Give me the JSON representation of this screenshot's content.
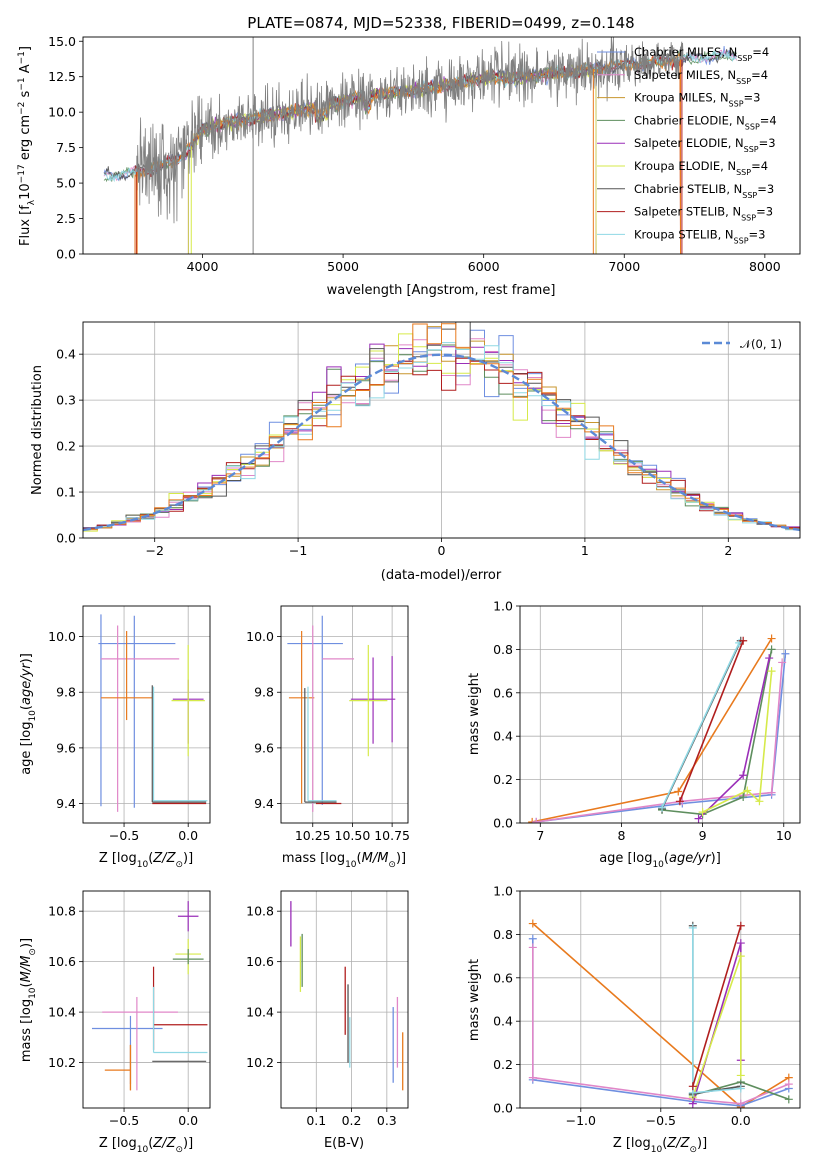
{
  "figure": {
    "title": "PLATE=0874, MJD=52338, FIBERID=0499, z=0.148",
    "models": [
      {
        "name": "Chabrier MILES, N$_{SSP}$=4",
        "label": "Chabrier MILES, N",
        "sub": "SSP",
        "suffix": "=4",
        "color": "#6f8fe0"
      },
      {
        "name": "Salpeter MILES, N$_{SSP}$=4",
        "label": "Salpeter MILES, N",
        "sub": "SSP",
        "suffix": "=4",
        "color": "#e087c8"
      },
      {
        "name": "Kroupa MILES, N$_{SSP}$=3",
        "label": "Kroupa MILES, N",
        "sub": "SSP",
        "suffix": "=3",
        "color": "#c8962e"
      },
      {
        "name": "Chabrier ELODIE, N$_{SSP}$=4",
        "label": "Chabrier ELODIE, N",
        "sub": "SSP",
        "suffix": "=4",
        "color": "#5e8e5e"
      },
      {
        "name": "Salpeter ELODIE, N$_{SSP}$=3",
        "label": "Salpeter ELODIE, N",
        "sub": "SSP",
        "suffix": "=3",
        "color": "#9a2fb8"
      },
      {
        "name": "Kroupa ELODIE, N$_{SSP}$=4",
        "label": "Kroupa ELODIE, N",
        "sub": "SSP",
        "suffix": "=4",
        "color": "#d6ea4a"
      },
      {
        "name": "Chabrier STELIB, N$_{SSP}$=3",
        "label": "Chabrier STELIB, N",
        "sub": "SSP",
        "suffix": "=3",
        "color": "#555555"
      },
      {
        "name": "Salpeter STELIB, N$_{SSP}$=3",
        "label": "Salpeter STELIB, N",
        "sub": "SSP",
        "suffix": "=3",
        "color": "#b01e1e"
      },
      {
        "name": "Kroupa STELIB, N$_{SSP}$=3",
        "label": "Kroupa STELIB, N",
        "sub": "SSP",
        "suffix": "=3",
        "color": "#8fd8e4"
      }
    ],
    "extra_colors": {
      "orange": "#e87a1e",
      "data": "#808080",
      "gauss": "#5b8ad6"
    }
  },
  "chart_data": [
    {
      "id": "spectrum",
      "type": "line",
      "xlabel": "wavelength [Angstrom, rest frame]",
      "ylabel_prefix": "Flux [f",
      "ylabel_sub": "λ",
      "ylabel_mid": "10",
      "ylabel_sup1": "−17",
      "ylabel_mid2": " erg cm",
      "ylabel_sup2": "−2",
      "ylabel_mid3": " s",
      "ylabel_sup3": "−1",
      "ylabel_mid4": " A",
      "ylabel_sup4": "−1",
      "ylabel_end": "]",
      "xlim": [
        3150,
        8250
      ],
      "ylim": [
        0,
        15.3
      ],
      "xticks": [
        4000,
        5000,
        6000,
        7000,
        8000
      ],
      "xtick_labels": [
        "4000",
        "5000",
        "6000",
        "7000",
        "8000"
      ],
      "yticks": [
        0,
        2.5,
        5,
        7.5,
        10,
        12.5,
        15
      ],
      "ytick_labels": [
        "0.0",
        "2.5",
        "5.0",
        "7.5",
        "10.0",
        "12.5",
        "15.0"
      ],
      "continuum": {
        "x": [
          3300,
          3500,
          3700,
          3800,
          3900,
          4000,
          4200,
          4500,
          4800,
          5000,
          5200,
          5500,
          5800,
          6000,
          6300,
          6600,
          7000,
          7200,
          7400,
          7600,
          7800
        ],
        "y": [
          5.5,
          5.7,
          6.2,
          6.6,
          7.3,
          8.8,
          9.3,
          9.8,
          10.3,
          10.8,
          11.2,
          11.5,
          12.0,
          12.4,
          12.5,
          12.8,
          13.3,
          13.5,
          13.7,
          13.9,
          14.0
        ]
      },
      "data_range": [
        3530,
        7420
      ],
      "model_ranges": [
        [
          3300,
          7800
        ],
        [
          3520,
          7400
        ],
        [
          3900,
          6800
        ]
      ],
      "gaps": [
        3530,
        3920,
        6780,
        7400
      ]
    },
    {
      "id": "residual_hist",
      "type": "bar",
      "xlabel": "(data-model)/error",
      "ylabel": "Normed distribution",
      "xlim": [
        -2.5,
        2.5
      ],
      "ylim": [
        0,
        0.47
      ],
      "xticks": [
        -2,
        -1,
        0,
        1,
        2
      ],
      "xtick_labels": [
        "−2",
        "−1",
        "0",
        "1",
        "2"
      ],
      "yticks": [
        0,
        0.1,
        0.2,
        0.3,
        0.4
      ],
      "ytick_labels": [
        "0.0",
        "0.1",
        "0.2",
        "0.3",
        "0.4"
      ],
      "gauss_label": "𝒩(0, 1)",
      "bin_width": 0.1
    },
    {
      "id": "age_vs_Z",
      "type": "scatter",
      "xlabel_pre": "Z [log",
      "xlabel_sub": "10",
      "xlabel_post": "(Z/Z",
      "xlabel_sub2": "⊙",
      "xlabel_end": ")]",
      "ylabel": "age  [log₁₀(age/yr)]",
      "xlim": [
        -0.82,
        0.17
      ],
      "ylim": [
        9.33,
        10.11
      ],
      "xticks": [
        -0.5,
        0.0
      ],
      "xtick_labels": [
        "−0.5",
        "0.0"
      ],
      "yticks": [
        9.4,
        9.6,
        9.8,
        10.0
      ],
      "ytick_labels": [
        "9.4",
        "9.6",
        "9.8",
        "10.0"
      ],
      "points": [
        {
          "x": -0.45,
          "y": 9.975,
          "xerr": 0.28,
          "yerr": 0.1,
          "c": "#6f8fe0",
          "xv": -0.68
        },
        {
          "x": -0.4,
          "y": 9.92,
          "xerr": 0.21,
          "c": "#e087c8"
        },
        {
          "x": -0.45,
          "y": 9.78,
          "xerr": 0.21,
          "c": "#e87a1e"
        },
        {
          "x": 0.0,
          "y": 9.775,
          "xerr": 0.11,
          "c": "#9a2fb8"
        },
        {
          "x": 0.0,
          "y": 9.77,
          "xerr": 0.13,
          "c": "#d6ea4a"
        },
        {
          "x": -0.05,
          "y": 9.41,
          "xerr": 0.22,
          "c": "#8fd8e4"
        },
        {
          "x": -0.05,
          "y": 9.405,
          "xerr": 0.22,
          "c": "#555555"
        },
        {
          "x": -0.05,
          "y": 9.4,
          "xerr": 0.22,
          "c": "#b01e1e"
        }
      ]
    },
    {
      "id": "age_vs_mass",
      "type": "scatter",
      "xlabel": "mass [log₁₀(M/M⊙)]",
      "xlim": [
        10.05,
        10.85
      ],
      "ylim": [
        9.33,
        10.11
      ],
      "xticks": [
        10.25,
        10.5,
        10.75
      ],
      "xtick_labels": [
        "10.25",
        "10.50",
        "10.75"
      ],
      "yticks": [
        9.4,
        9.6,
        9.8,
        10.0
      ],
      "ytick_labels": [
        "9.4",
        "9.6",
        "9.8",
        "10.0"
      ]
    },
    {
      "id": "weight_vs_age",
      "type": "line",
      "xlabel": "age  [log₁₀(age/yr)]",
      "ylabel": "mass weight",
      "xlim": [
        6.75,
        10.2
      ],
      "ylim": [
        0,
        1.0
      ],
      "xticks": [
        7,
        8,
        9,
        10
      ],
      "xtick_labels": [
        "7",
        "8",
        "9",
        "10"
      ],
      "yticks": [
        0,
        0.2,
        0.4,
        0.6,
        0.8,
        1.0
      ],
      "ytick_labels": [
        "0.0",
        "0.2",
        "0.4",
        "0.6",
        "0.8",
        "1.0"
      ],
      "series": [
        {
          "c": "#e87a1e",
          "x": [
            6.9,
            8.7,
            9.85
          ],
          "y": [
            0.005,
            0.145,
            0.85
          ]
        },
        {
          "c": "#6f8fe0",
          "x": [
            6.95,
            8.75,
            9.85,
            10.02
          ],
          "y": [
            0.005,
            0.09,
            0.13,
            0.78
          ]
        },
        {
          "c": "#e087c8",
          "x": [
            6.95,
            8.75,
            9.85,
            9.98
          ],
          "y": [
            0.005,
            0.1,
            0.14,
            0.74
          ]
        },
        {
          "c": "#5e8e5e",
          "x": [
            8.5,
            9.0,
            9.5,
            9.85
          ],
          "y": [
            0.06,
            0.04,
            0.12,
            0.8
          ]
        },
        {
          "c": "#9a2fb8",
          "x": [
            8.95,
            9.5,
            9.82
          ],
          "y": [
            0.02,
            0.22,
            0.76
          ]
        },
        {
          "c": "#d6ea4a",
          "x": [
            9.0,
            9.55,
            9.7,
            9.85
          ],
          "y": [
            0.05,
            0.15,
            0.1,
            0.7
          ]
        },
        {
          "c": "#555555",
          "x": [
            8.5,
            9.47
          ],
          "y": [
            0.065,
            0.84
          ]
        },
        {
          "c": "#8fd8e4",
          "x": [
            8.5,
            9.45
          ],
          "y": [
            0.07,
            0.83
          ]
        },
        {
          "c": "#b01e1e",
          "x": [
            8.72,
            9.5
          ],
          "y": [
            0.1,
            0.84
          ]
        }
      ]
    },
    {
      "id": "mass_vs_Z",
      "type": "scatter",
      "xlabel": "Z [log₁₀(Z/Z⊙)]",
      "ylabel": "mass [log₁₀(M/M⊙)]",
      "xlim": [
        -0.82,
        0.17
      ],
      "ylim": [
        10.02,
        10.88
      ],
      "xticks": [
        -0.5,
        0.0
      ],
      "xtick_labels": [
        "−0.5",
        "0.0"
      ],
      "yticks": [
        10.2,
        10.4,
        10.6,
        10.8
      ],
      "ytick_labels": [
        "10.2",
        "10.4",
        "10.6",
        "10.8"
      ]
    },
    {
      "id": "mass_vs_ebv",
      "type": "scatter",
      "xlabel": "E(B-V)",
      "xlim": [
        0.0,
        0.36
      ],
      "ylim": [
        10.02,
        10.88
      ],
      "xticks": [
        0.1,
        0.2,
        0.3
      ],
      "xtick_labels": [
        "0.1",
        "0.2",
        "0.3"
      ],
      "yticks": [
        10.2,
        10.4,
        10.6,
        10.8
      ],
      "ytick_labels": [
        "10.2",
        "10.4",
        "10.6",
        "10.8"
      ]
    },
    {
      "id": "weight_vs_Z",
      "type": "line",
      "xlabel": "Z [log₁₀(Z/Z⊙)]",
      "ylabel": "mass weight",
      "xlim": [
        -1.38,
        0.37
      ],
      "ylim": [
        0,
        1.0
      ],
      "xticks": [
        -1.0,
        -0.5,
        0.0
      ],
      "xtick_labels": [
        "−1.0",
        "−0.5",
        "0.0"
      ],
      "yticks": [
        0,
        0.2,
        0.4,
        0.6,
        0.8,
        1.0
      ],
      "ytick_labels": [
        "0.0",
        "0.2",
        "0.4",
        "0.6",
        "0.8",
        "1.0"
      ],
      "series": [
        {
          "c": "#e87a1e",
          "x": [
            -1.3,
            0.0,
            0.3
          ],
          "y": [
            0.85,
            0.005,
            0.14
          ]
        },
        {
          "c": "#6f8fe0",
          "x": [
            -1.3,
            -1.3,
            -0.3,
            0.0,
            0.3
          ],
          "y": [
            0.78,
            0.13,
            0.03,
            0.01,
            0.09
          ]
        },
        {
          "c": "#e087c8",
          "x": [
            -1.3,
            -1.3,
            -0.3,
            0.0,
            0.3
          ],
          "y": [
            0.74,
            0.14,
            0.04,
            0.02,
            0.11
          ]
        },
        {
          "c": "#5e8e5e",
          "x": [
            -0.3,
            0.0,
            0.3
          ],
          "y": [
            0.06,
            0.12,
            0.04
          ]
        },
        {
          "c": "#9a2fb8",
          "x": [
            -0.3,
            0.0,
            0.0
          ],
          "y": [
            0.02,
            0.76,
            0.22
          ]
        },
        {
          "c": "#d6ea4a",
          "x": [
            -0.3,
            0.0,
            0.0
          ],
          "y": [
            0.05,
            0.7,
            0.15
          ]
        },
        {
          "c": "#555555",
          "x": [
            -0.3,
            -0.3,
            0.0
          ],
          "y": [
            0.84,
            0.065,
            0.1
          ]
        },
        {
          "c": "#8fd8e4",
          "x": [
            -0.3,
            -0.3,
            0.0
          ],
          "y": [
            0.83,
            0.07,
            0.09
          ]
        },
        {
          "c": "#b01e1e",
          "x": [
            -0.3,
            0.0
          ],
          "y": [
            0.1,
            0.84
          ]
        }
      ]
    }
  ]
}
